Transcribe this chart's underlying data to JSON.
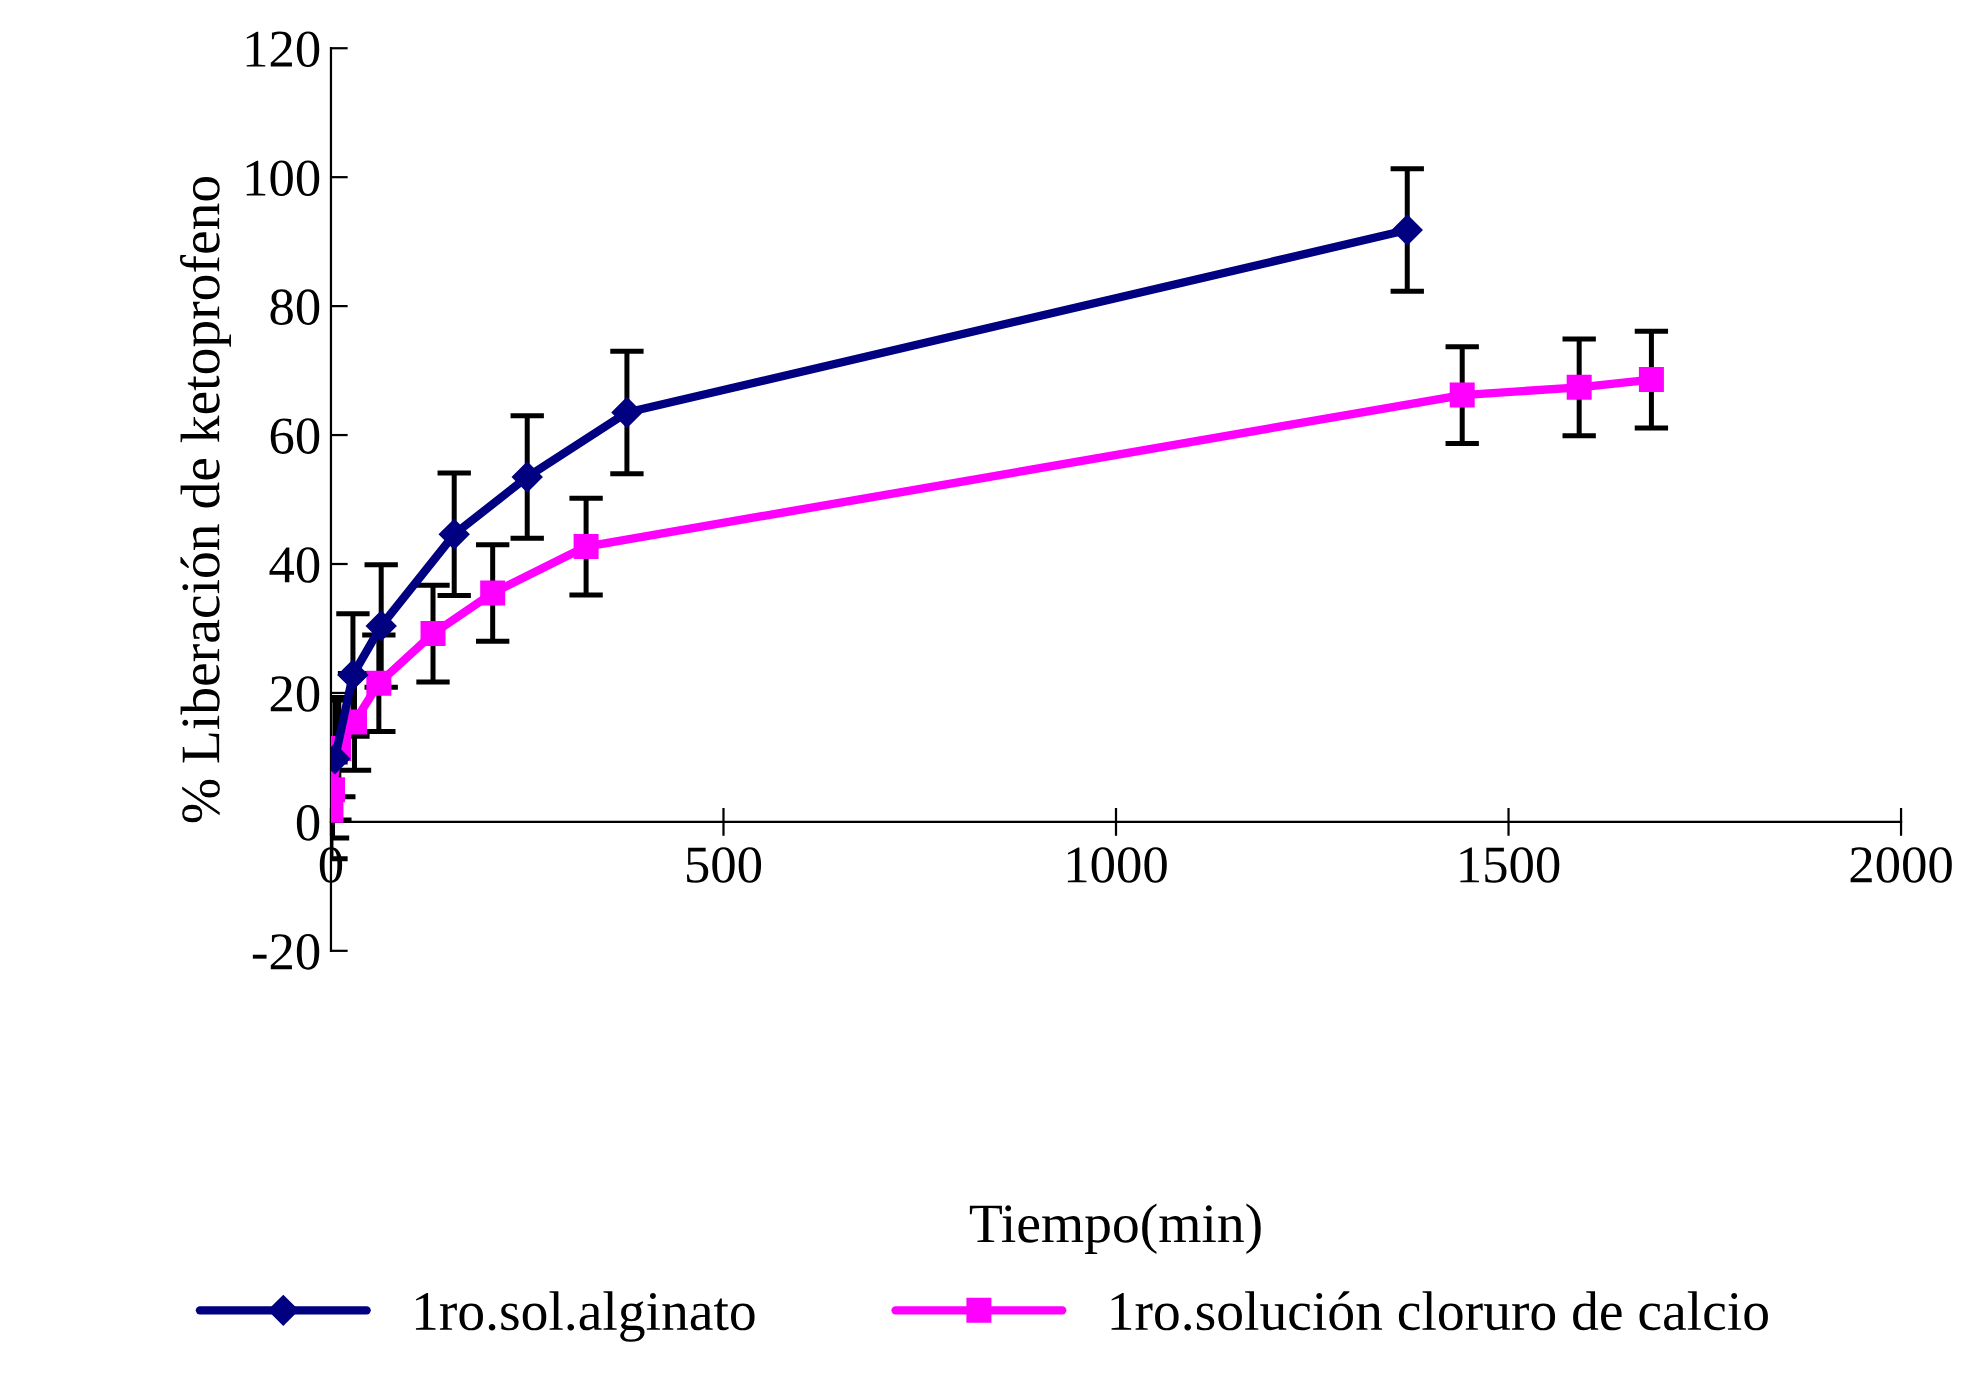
{
  "chart_data": {
    "type": "line",
    "xlabel": "Tiempo(min)",
    "ylabel": "% Liberación de ketoprofeno",
    "xlim": [
      0,
      2000
    ],
    "xticks": [
      0,
      500,
      1000,
      1500,
      2000
    ],
    "ylim": [
      -20,
      120
    ],
    "yticks": [
      -20,
      0,
      20,
      40,
      60,
      80,
      100,
      120
    ],
    "grid": false,
    "legend": "bottom",
    "series": [
      {
        "name": "1ro.sol.alginato",
        "color": "#000080",
        "marker": "diamond",
        "x": [
          5,
          28,
          64,
          157,
          250,
          377,
          1371
        ],
        "values": [
          9.8,
          22.8,
          30.4,
          44.6,
          53.5,
          63.5,
          91.8
        ],
        "errors": [
          9.5,
          9.5,
          9.5,
          9.5,
          9.5,
          9.5,
          9.5
        ]
      },
      {
        "name": "1ro.solución cloruro de calcio",
        "color": "#ff00ff",
        "marker": "square",
        "x": [
          0,
          2,
          10,
          30,
          61,
          130,
          206,
          325,
          1441,
          1590,
          1682
        ],
        "values": [
          1.8,
          5,
          11.4,
          15.5,
          21.5,
          29.2,
          35.5,
          42.7,
          66.2,
          67.4,
          68.6
        ],
        "errors": [
          7.5,
          7.5,
          7.5,
          7.5,
          7.5,
          7.5,
          7.5,
          7.5,
          7.5,
          7.5,
          7.5
        ]
      }
    ]
  }
}
